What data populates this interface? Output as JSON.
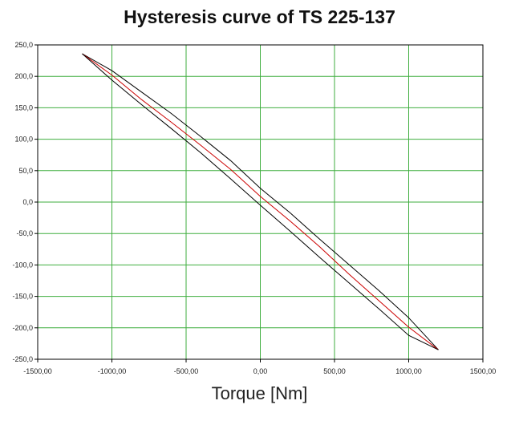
{
  "chart_data": {
    "type": "line",
    "title": "Hysteresis curve of TS 225-137",
    "xlabel": "Torque [Nm]",
    "ylabel": "",
    "xlim": [
      -1500,
      1500
    ],
    "ylim": [
      -250,
      250
    ],
    "x_ticks": [
      "-1500,00",
      "-1000,00",
      "-500,00",
      "0,00",
      "500,00",
      "1000,00",
      "1500,00"
    ],
    "y_ticks": [
      "250,0",
      "200,0",
      "150,0",
      "100,0",
      "50,0",
      "0,0",
      "-50,0",
      "-100,0",
      "-150,0",
      "-200,0",
      "-250,0"
    ],
    "grid": true,
    "grid_color": "#3fae3f",
    "series": [
      {
        "color": "#000000",
        "x": [
          -1200,
          -1000,
          -800,
          -600,
          -400,
          -200,
          0,
          200,
          400,
          600,
          800,
          1000,
          1200
        ],
        "y": [
          236,
          209,
          175,
          141,
          104,
          66,
          22,
          -17,
          -59,
          -100,
          -141,
          -184,
          -235
        ]
      },
      {
        "color": "#cc0000",
        "x": [
          -1200,
          -1000,
          -800,
          -600,
          -400,
          -200,
          0,
          200,
          400,
          600,
          800,
          1000,
          1200
        ],
        "y": [
          236,
          202,
          163,
          127,
          90,
          52,
          9,
          -30,
          -71,
          -115,
          -157,
          -199,
          -235
        ]
      },
      {
        "color": "#000000",
        "x": [
          -1200,
          -1000,
          -800,
          -600,
          -400,
          -200,
          0,
          200,
          400,
          600,
          800,
          1000,
          1200
        ],
        "y": [
          236,
          194,
          155,
          117,
          78,
          37,
          -5,
          -46,
          -88,
          -129,
          -170,
          -212,
          -235
        ]
      }
    ]
  }
}
